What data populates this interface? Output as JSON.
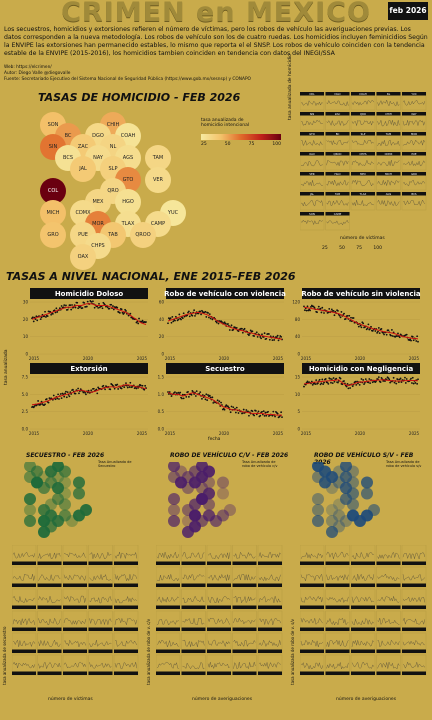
{
  "header": {
    "title": "CRIMEN en MEXICO",
    "date": "feb 2026"
  },
  "description": "Los secuestros, homicidios y extorsiones refieren el número de víctimas, pero los robos de vehículo las averiguaciones previas. Los datos corresponden a la nueva metodología. Los robos de vehículo son los de cuatro ruedas. Los homicidios incluyen feminicidios Según la ENVIPE las extorsiones han permanecido estables, lo mismo que reporta el el SNSP. Los robos de vehículo coinciden con la tendencia estable de la ENVIPE (2015-2016), los homicidios tambien coinciden en tendencia con datos del INEGI/SSA",
  "meta": {
    "web": "Web: https://elcrimen/",
    "autor": "Autor: Diego Valle @diegovalle",
    "fuente": "Fuente: Secretariado Ejecutivo del Sistema Nacional de Seguridad Pública (https://www.gob.mx/sesnsp) y CONAPO"
  },
  "homicide_map": {
    "heading": "TASAS DE HOMICIDIO - FEB 2026",
    "legend_title": "tasa anualizada de homicidio intencional",
    "legend_ticks": [
      "25",
      "50",
      "75",
      "100"
    ],
    "states": [
      {
        "code": "SON",
        "col": 0,
        "row": 0,
        "v": 28
      },
      {
        "code": "CHIH",
        "col": 2,
        "row": 0,
        "v": 35
      },
      {
        "code": "BC",
        "col": 0,
        "row": 1,
        "v": 40
      },
      {
        "code": "DGO",
        "col": 1,
        "row": 1,
        "v": 12
      },
      {
        "code": "COAH",
        "col": 2,
        "row": 1,
        "v": 5
      },
      {
        "code": "SIN",
        "col": 0,
        "row": 2,
        "v": 52
      },
      {
        "code": "ZAC",
        "col": 1,
        "row": 2,
        "v": 22
      },
      {
        "code": "NL",
        "col": 2,
        "row": 2,
        "v": 15
      },
      {
        "code": "BCS",
        "col": 0,
        "row": 3,
        "v": 6
      },
      {
        "code": "NAY",
        "col": 1,
        "row": 3,
        "v": 10
      },
      {
        "code": "AGS",
        "col": 2,
        "row": 3,
        "v": 9
      },
      {
        "code": "TAM",
        "col": 3,
        "row": 3,
        "v": 14
      },
      {
        "code": "JAL",
        "col": 1,
        "row": 4,
        "v": 22
      },
      {
        "code": "SLP",
        "col": 2,
        "row": 4,
        "v": 18
      },
      {
        "code": "GTO",
        "col": 2,
        "row": 5,
        "v": 45
      },
      {
        "code": "VER",
        "col": 3,
        "row": 5,
        "v": 11
      },
      {
        "code": "COL",
        "col": 0,
        "row": 6,
        "v": 110
      },
      {
        "code": "QRO",
        "col": 2,
        "row": 6,
        "v": 14
      },
      {
        "code": "MEX",
        "col": 1,
        "row": 7,
        "v": 14
      },
      {
        "code": "HGO",
        "col": 2,
        "row": 7,
        "v": 7
      },
      {
        "code": "MICH",
        "col": 0,
        "row": 8,
        "v": 28
      },
      {
        "code": "CDMX",
        "col": 1,
        "row": 8,
        "v": 11
      },
      {
        "code": "YUC",
        "col": 4,
        "row": 8,
        "v": 3
      },
      {
        "code": "MOR",
        "col": 1,
        "row": 9,
        "v": 48
      },
      {
        "code": "TLAX",
        "col": 2,
        "row": 9,
        "v": 8
      },
      {
        "code": "CAMP",
        "col": 3,
        "row": 9,
        "v": 10
      },
      {
        "code": "GRO",
        "col": 0,
        "row": 10,
        "v": 26
      },
      {
        "code": "PUE",
        "col": 1,
        "row": 10,
        "v": 13
      },
      {
        "code": "TAB",
        "col": 2,
        "row": 10,
        "v": 24
      },
      {
        "code": "QROO",
        "col": 3,
        "row": 10,
        "v": 17
      },
      {
        "code": "CHPS",
        "col": 1,
        "row": 11,
        "v": 10
      },
      {
        "code": "OAX",
        "col": 1,
        "row": 12,
        "v": 17
      }
    ]
  },
  "top_small_multiples": {
    "ylabel": "tasa anualizada de homicidio",
    "legend_title": "número de víctimas",
    "legend_ticks": [
      "25",
      "50",
      "75",
      "100"
    ],
    "panels": [
      "CDL",
      "DGO",
      "COAH",
      "NL",
      "YUC",
      "SIN",
      "ZAC",
      "QRO",
      "CHIH",
      "NAY",
      "GTO",
      "BC",
      "SLP",
      "TAM",
      "MOR",
      "OAX",
      "QROO",
      "CHPS",
      "CDMX",
      "PUE",
      "VER",
      "HGO",
      "MEX",
      "MICH",
      "GRO",
      "JAL",
      "TAB",
      "TLAX",
      "AGS",
      "BCS",
      "SON",
      "CAMP"
    ]
  },
  "national": {
    "heading": "TASAS A NIVEL NACIONAL, ENE 2015–FEB 2026",
    "ylabel": "tasa anualizada",
    "xlabel": "fecha",
    "xticks": [
      "2015",
      "2020",
      "2025"
    ],
    "panels": [
      {
        "title": "Homicidio Doloso",
        "yticks": [
          "0",
          "10",
          "20",
          "30"
        ],
        "ymax": 30,
        "pts": [
          20,
          21,
          22,
          23,
          24,
          25,
          26,
          27,
          27,
          28,
          28,
          29,
          29,
          28,
          28,
          28,
          27,
          26,
          25,
          24,
          22,
          20,
          18,
          17
        ]
      },
      {
        "title": "Robo de vehículo con violencia",
        "yticks": [
          "0",
          "20",
          "40",
          "60"
        ],
        "ymax": 60,
        "pts": [
          38,
          40,
          42,
          44,
          46,
          47,
          48,
          47,
          45,
          42,
          38,
          35,
          32,
          30,
          28,
          27,
          25,
          24,
          22,
          21,
          20,
          19,
          18,
          17
        ]
      },
      {
        "title": "Robo de vehículo sin violencia",
        "yticks": [
          "0",
          "40",
          "80",
          "120"
        ],
        "ymax": 120,
        "pts": [
          108,
          106,
          104,
          102,
          100,
          98,
          96,
          93,
          88,
          82,
          76,
          70,
          66,
          62,
          58,
          55,
          52,
          50,
          48,
          44,
          40,
          38,
          36,
          35
        ]
      },
      {
        "title": "Extorsión",
        "yticks": [
          "0.0",
          "2.5",
          "5.0",
          "7.5"
        ],
        "ymax": 7.5,
        "pts": [
          3.5,
          3.6,
          3.8,
          4.0,
          4.3,
          4.6,
          4.8,
          5.0,
          5.2,
          5.5,
          5.6,
          5.4,
          5.3,
          5.5,
          5.8,
          6.0,
          6.1,
          6.0,
          6.2,
          6.4,
          6.3,
          6.1,
          6.0,
          5.8
        ]
      },
      {
        "title": "Secuestro",
        "yticks": [
          "0.0",
          "0.5",
          "1.0",
          "1.5"
        ],
        "ymax": 1.5,
        "pts": [
          1.05,
          1.0,
          1.0,
          0.95,
          1.0,
          1.05,
          1.0,
          0.95,
          0.9,
          0.85,
          0.75,
          0.65,
          0.6,
          0.55,
          0.55,
          0.5,
          0.48,
          0.45,
          0.45,
          0.45,
          0.42,
          0.42,
          0.4,
          0.4
        ]
      },
      {
        "title": "Homicidio con Negligencia",
        "yticks": [
          "0",
          "5",
          "10",
          "15"
        ],
        "ymax": 15,
        "pts": [
          13,
          13.2,
          13.5,
          13.6,
          13.8,
          13.9,
          14,
          14.2,
          13,
          12.5,
          13,
          13.5,
          13.6,
          13.8,
          14,
          14.1,
          14.2,
          14,
          13.9,
          13.8,
          13.9,
          14,
          14,
          13.9
        ]
      }
    ]
  },
  "bottom_maps": [
    {
      "title": "SECUESTRO - FEB 2026",
      "legend_title": "Tasa Anualizada de Secuestro",
      "color": "#1d6a3a"
    },
    {
      "title": "ROBO DE VEHÍCULO C/V - FEB 2026",
      "legend_title": "Tasa Anualizada de robo de vehículo c/v",
      "color": "#4a1d6a"
    },
    {
      "title": "ROBO DE VEHÍCULO S/V - FEB 2026",
      "legend_title": "Tasa Anualizada de robo de vehículo s/v",
      "color": "#1d4a7a"
    }
  ],
  "bottom_multiples": [
    {
      "ylabel": "tasa anualizada de secuestro",
      "legend_title": "número de víctimas"
    },
    {
      "ylabel": "tasa anualizada de robo de v. c/v",
      "legend_title": "número de averiguaciones"
    },
    {
      "ylabel": "tasa anualizada de robo de v. s/v",
      "legend_title": "número de averiguaciones"
    }
  ],
  "colors": {
    "background": "#c9ab4b",
    "dark": "#111111",
    "trend": "#cc1111",
    "low": "#f5e8a0",
    "high": "#6a0010"
  },
  "chart_data": [
    {
      "type": "line",
      "title": "Homicidio Doloso",
      "x": [
        "2015",
        "2020",
        "2025"
      ],
      "ylabel": "tasa anualizada",
      "ylim": [
        0,
        30
      ]
    },
    {
      "type": "line",
      "title": "Robo de vehículo con violencia",
      "ylim": [
        0,
        60
      ]
    },
    {
      "type": "line",
      "title": "Robo de vehículo sin violencia",
      "ylim": [
        0,
        120
      ]
    },
    {
      "type": "line",
      "title": "Extorsión",
      "ylim": [
        0,
        7.5
      ]
    },
    {
      "type": "line",
      "title": "Secuestro",
      "ylim": [
        0,
        1.5
      ]
    },
    {
      "type": "line",
      "title": "Homicidio con Negligencia",
      "ylim": [
        0,
        15
      ]
    }
  ]
}
